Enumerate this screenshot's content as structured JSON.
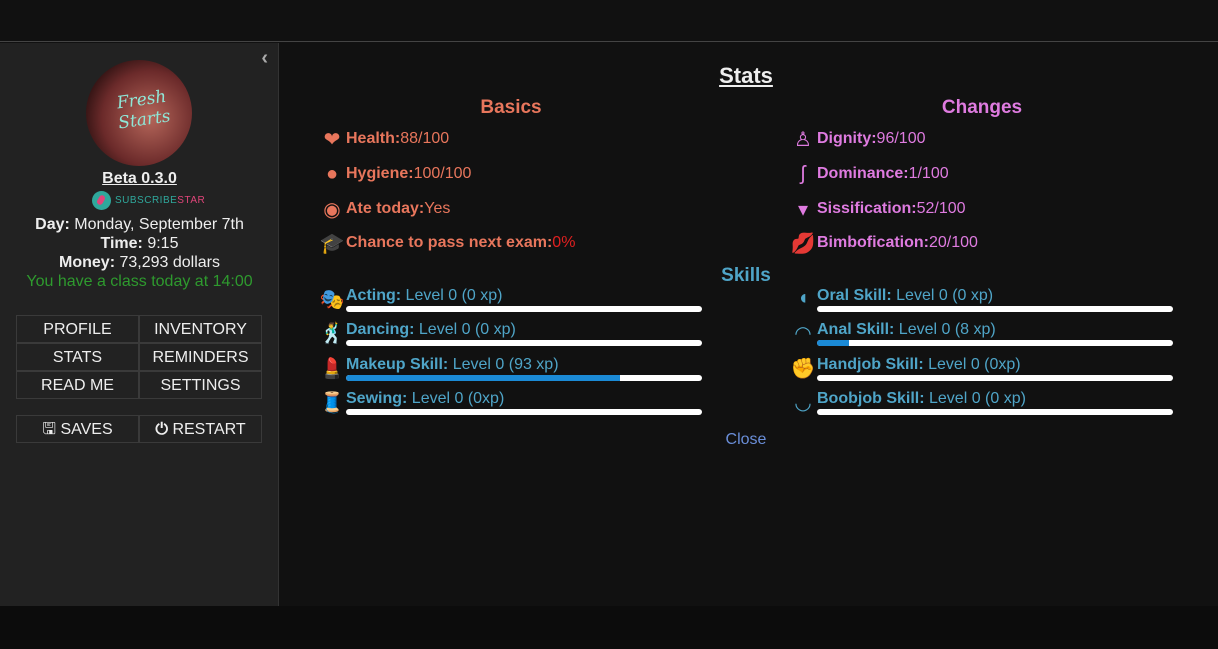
{
  "sidebar": {
    "collapse_icon": "chevron-left-icon",
    "logo_text": "Fresh Starts",
    "version": "Beta 0.3.0",
    "subscribestar": {
      "part1": "SUBSCRIBE",
      "part2": "STAR"
    },
    "day_label": "Day:",
    "day_value": " Monday, September 7th",
    "time_label": "Time:",
    "time_value": " 9:15",
    "money_label": "Money:",
    "money_value": " 73,293 dollars",
    "class_note": "You have a class today at 14:00",
    "menu": [
      "PROFILE",
      "INVENTORY",
      "STATS",
      "REMINDERS",
      "READ ME",
      "SETTINGS"
    ],
    "saves": "SAVES",
    "restart": "RESTART"
  },
  "stats": {
    "title": "Stats",
    "basics": {
      "heading": "Basics",
      "items": [
        {
          "label": "Health:",
          "value": " 88/100",
          "icon": "heart-plus-icon"
        },
        {
          "label": "Hygiene:",
          "value": " 100/100",
          "icon": "soap-bubbles-icon"
        },
        {
          "label": "Ate today:",
          "value": " Yes",
          "icon": "plate-icon"
        },
        {
          "label": "Chance to pass next exam:",
          "value": " 0%",
          "icon": "graduation-cap-icon"
        }
      ]
    },
    "changes": {
      "heading": "Changes",
      "items": [
        {
          "label": "Dignity:",
          "value": " 96/100",
          "icon": "person-icon"
        },
        {
          "label": "Dominance:",
          "value": " 1/100",
          "icon": "wig-icon"
        },
        {
          "label": "Sissification:",
          "value": " 52/100",
          "icon": "panties-icon"
        },
        {
          "label": "Bimbofication:",
          "value": " 20/100",
          "icon": "lips-icon"
        }
      ]
    },
    "skills": {
      "heading": "Skills",
      "left": [
        {
          "label": "Acting:",
          "value": " Level 0 (0 xp)",
          "progress_pct": 0,
          "icon": "theater-masks-icon"
        },
        {
          "label": "Dancing:",
          "value": " Level 0 (0 xp)",
          "progress_pct": 0,
          "icon": "dancer-icon"
        },
        {
          "label": "Makeup Skill:",
          "value": " Level 0 (93 xp)",
          "progress_pct": 77,
          "icon": "makeup-icon"
        },
        {
          "label": "Sewing:",
          "value": " Level 0 (0xp)",
          "progress_pct": 0,
          "icon": "thread-needle-icon"
        }
      ],
      "right": [
        {
          "label": "Oral Skill:",
          "value": " Level 0 (0 xp)",
          "progress_pct": 0,
          "icon": "face-profile-icon"
        },
        {
          "label": "Anal Skill:",
          "value": " Level 0 (8 xp)",
          "progress_pct": 9,
          "icon": "buttocks-icon"
        },
        {
          "label": "Handjob Skill:",
          "value": " Level 0 (0xp)",
          "progress_pct": 0,
          "icon": "fist-icon"
        },
        {
          "label": "Boobjob Skill:",
          "value": " Level 0 (0 xp)",
          "progress_pct": 0,
          "icon": "chest-icon"
        }
      ]
    },
    "close": "Close",
    "colors": {
      "basics": "#e8765c",
      "changes": "#df7be0",
      "skills": "#4fa5c8",
      "exam_value": "#e02020",
      "class_note": "#2e9a2e",
      "bar_fill": "#1b8ad6"
    }
  }
}
